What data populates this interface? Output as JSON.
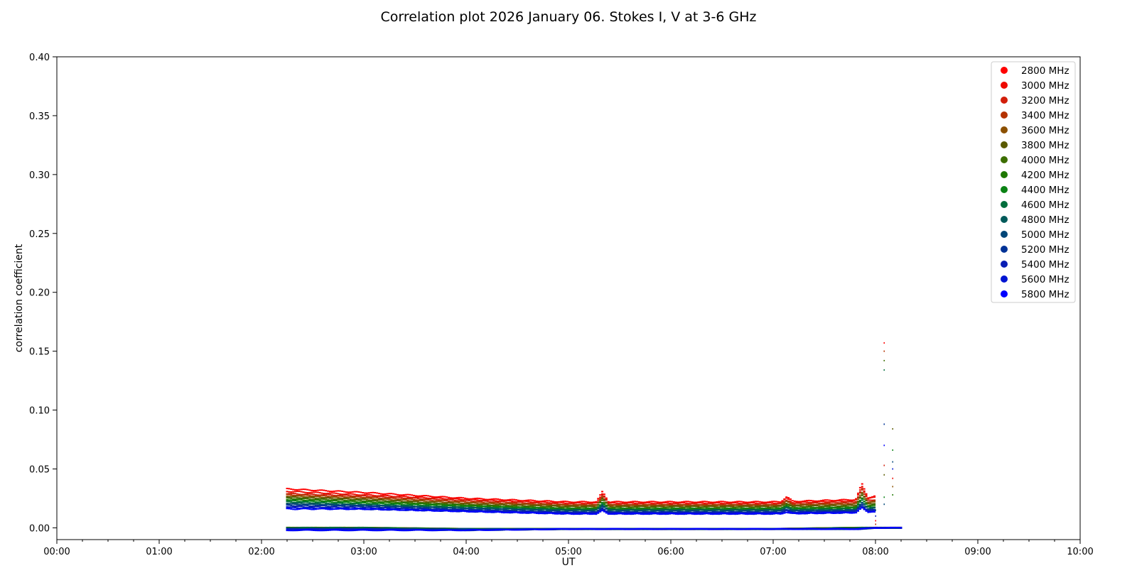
{
  "chart_data": {
    "type": "scatter",
    "title": "Correlation plot 2026 January 06. Stokes I, V at 3-6 GHz",
    "xlabel": "UT",
    "ylabel": "correlation coefficient",
    "xlim": [
      "00:00",
      "10:00"
    ],
    "ylim": [
      -0.01,
      0.4
    ],
    "x_ticks": [
      "00:00",
      "01:00",
      "02:00",
      "03:00",
      "04:00",
      "05:00",
      "06:00",
      "07:00",
      "08:00",
      "09:00",
      "10:00"
    ],
    "y_ticks": [
      "0.00",
      "0.05",
      "0.10",
      "0.15",
      "0.20",
      "0.25",
      "0.30",
      "0.35",
      "0.40"
    ],
    "grid": false,
    "legend_position": "top-right",
    "time_range": [
      "02:15",
      "08:15"
    ],
    "series": [
      {
        "name": "2800 MHz",
        "color": "#ff0000",
        "x": [
          "02:15",
          "03:00",
          "04:00",
          "05:00",
          "06:00",
          "07:00",
          "07:50",
          "08:00"
        ],
        "stokes_i": [
          0.033,
          0.03,
          0.025,
          0.022,
          0.022,
          0.022,
          0.024,
          0.027
        ],
        "stokes_v": [
          0.0,
          0.0,
          -0.001,
          -0.001,
          -0.001,
          -0.001,
          0.0,
          0.0
        ]
      },
      {
        "name": "3000 MHz",
        "color": "#ee0a00",
        "x": [
          "02:15",
          "03:00",
          "04:00",
          "05:00",
          "06:00",
          "07:00",
          "07:50",
          "08:00"
        ],
        "stokes_i": [
          0.031,
          0.028,
          0.024,
          0.021,
          0.021,
          0.021,
          0.023,
          0.026
        ],
        "stokes_v": [
          0.0,
          0.0,
          -0.001,
          -0.001,
          -0.001,
          -0.001,
          0.0,
          0.0
        ]
      },
      {
        "name": "3200 MHz",
        "color": "#d21e0a",
        "x": [
          "02:15",
          "03:00",
          "04:00",
          "05:00",
          "06:00",
          "07:00",
          "07:50",
          "08:00"
        ],
        "stokes_i": [
          0.029,
          0.027,
          0.023,
          0.02,
          0.02,
          0.02,
          0.022,
          0.024
        ],
        "stokes_v": [
          0.0,
          0.0,
          -0.001,
          -0.001,
          -0.001,
          -0.001,
          0.0,
          0.0
        ]
      },
      {
        "name": "3400 MHz",
        "color": "#b43200",
        "x": [
          "02:15",
          "03:00",
          "04:00",
          "05:00",
          "06:00",
          "07:00",
          "07:50",
          "08:00"
        ],
        "stokes_i": [
          0.028,
          0.026,
          0.022,
          0.019,
          0.019,
          0.019,
          0.021,
          0.023
        ],
        "stokes_v": [
          0.0,
          0.0,
          -0.001,
          -0.001,
          -0.001,
          -0.001,
          0.0,
          0.0
        ]
      },
      {
        "name": "3600 MHz",
        "color": "#8c5000",
        "x": [
          "02:15",
          "03:00",
          "04:00",
          "05:00",
          "06:00",
          "07:00",
          "07:50",
          "08:00"
        ],
        "stokes_i": [
          0.027,
          0.025,
          0.021,
          0.019,
          0.019,
          0.019,
          0.02,
          0.022
        ],
        "stokes_v": [
          0.0,
          0.0,
          -0.001,
          -0.001,
          -0.001,
          -0.001,
          0.0,
          0.0
        ]
      },
      {
        "name": "3800 MHz",
        "color": "#5a5a00",
        "x": [
          "02:15",
          "03:00",
          "04:00",
          "05:00",
          "06:00",
          "07:00",
          "07:50",
          "08:00"
        ],
        "stokes_i": [
          0.026,
          0.024,
          0.02,
          0.018,
          0.018,
          0.018,
          0.019,
          0.021
        ],
        "stokes_v": [
          0.0,
          0.0,
          -0.001,
          -0.001,
          -0.001,
          -0.001,
          0.0,
          0.0
        ]
      },
      {
        "name": "4000 MHz",
        "color": "#3c6e00",
        "x": [
          "02:15",
          "03:00",
          "04:00",
          "05:00",
          "06:00",
          "07:00",
          "07:50",
          "08:00"
        ],
        "stokes_i": [
          0.025,
          0.023,
          0.019,
          0.017,
          0.017,
          0.017,
          0.018,
          0.02
        ],
        "stokes_v": [
          0.0,
          0.0,
          -0.001,
          -0.001,
          -0.001,
          -0.001,
          0.0,
          0.0
        ]
      },
      {
        "name": "4200 MHz",
        "color": "#1e7800",
        "x": [
          "02:15",
          "03:00",
          "04:00",
          "05:00",
          "06:00",
          "07:00",
          "07:50",
          "08:00"
        ],
        "stokes_i": [
          0.024,
          0.022,
          0.019,
          0.016,
          0.016,
          0.016,
          0.017,
          0.019
        ],
        "stokes_v": [
          0.0,
          0.0,
          -0.001,
          -0.001,
          -0.001,
          -0.001,
          0.0,
          0.0
        ]
      },
      {
        "name": "4400 MHz",
        "color": "#0a8214",
        "x": [
          "02:15",
          "03:00",
          "04:00",
          "05:00",
          "06:00",
          "07:00",
          "07:50",
          "08:00"
        ],
        "stokes_i": [
          0.023,
          0.021,
          0.018,
          0.016,
          0.016,
          0.016,
          0.017,
          0.018
        ],
        "stokes_v": [
          0.0,
          0.0,
          -0.001,
          -0.001,
          -0.001,
          -0.001,
          0.0,
          0.0
        ]
      },
      {
        "name": "4600 MHz",
        "color": "#006e3c",
        "x": [
          "02:15",
          "03:00",
          "04:00",
          "05:00",
          "06:00",
          "07:00",
          "07:50",
          "08:00"
        ],
        "stokes_i": [
          0.022,
          0.02,
          0.017,
          0.015,
          0.015,
          0.015,
          0.016,
          0.017
        ],
        "stokes_v": [
          0.0,
          0.0,
          -0.001,
          -0.001,
          -0.001,
          -0.001,
          0.0,
          0.0
        ]
      },
      {
        "name": "4800 MHz",
        "color": "#005a5a",
        "x": [
          "02:15",
          "03:00",
          "04:00",
          "05:00",
          "06:00",
          "07:00",
          "07:50",
          "08:00"
        ],
        "stokes_i": [
          0.021,
          0.019,
          0.017,
          0.015,
          0.015,
          0.015,
          0.015,
          0.017
        ],
        "stokes_v": [
          -0.001,
          -0.001,
          -0.001,
          -0.001,
          -0.001,
          -0.001,
          -0.001,
          0.0
        ]
      },
      {
        "name": "5000 MHz",
        "color": "#004678",
        "x": [
          "02:15",
          "03:00",
          "04:00",
          "05:00",
          "06:00",
          "07:00",
          "07:50",
          "08:00"
        ],
        "stokes_i": [
          0.02,
          0.019,
          0.016,
          0.014,
          0.014,
          0.014,
          0.015,
          0.016
        ],
        "stokes_v": [
          -0.001,
          -0.001,
          -0.001,
          -0.001,
          -0.001,
          -0.001,
          -0.001,
          0.0
        ]
      },
      {
        "name": "5200 MHz",
        "color": "#003296",
        "x": [
          "02:15",
          "03:00",
          "04:00",
          "05:00",
          "06:00",
          "07:00",
          "07:50",
          "08:00"
        ],
        "stokes_i": [
          0.019,
          0.018,
          0.015,
          0.013,
          0.013,
          0.013,
          0.014,
          0.015
        ],
        "stokes_v": [
          -0.001,
          -0.001,
          -0.002,
          -0.001,
          -0.001,
          -0.001,
          -0.001,
          0.0
        ]
      },
      {
        "name": "5400 MHz",
        "color": "#0a1eb4",
        "x": [
          "02:15",
          "03:00",
          "04:00",
          "05:00",
          "06:00",
          "07:00",
          "07:50",
          "08:00"
        ],
        "stokes_i": [
          0.018,
          0.017,
          0.015,
          0.013,
          0.013,
          0.013,
          0.014,
          0.015
        ],
        "stokes_v": [
          -0.001,
          -0.001,
          -0.002,
          -0.001,
          -0.001,
          -0.001,
          -0.001,
          0.0
        ]
      },
      {
        "name": "5600 MHz",
        "color": "#0014d2",
        "x": [
          "02:15",
          "03:00",
          "04:00",
          "05:00",
          "06:00",
          "07:00",
          "07:50",
          "08:00"
        ],
        "stokes_i": [
          0.017,
          0.016,
          0.014,
          0.012,
          0.012,
          0.012,
          0.013,
          0.014
        ],
        "stokes_v": [
          -0.002,
          -0.002,
          -0.002,
          -0.001,
          -0.001,
          -0.001,
          -0.001,
          0.0
        ]
      },
      {
        "name": "5800 MHz",
        "color": "#0000ff",
        "x": [
          "02:15",
          "03:00",
          "04:00",
          "05:00",
          "06:00",
          "07:00",
          "07:50",
          "08:00"
        ],
        "stokes_i": [
          0.016,
          0.016,
          0.014,
          0.012,
          0.012,
          0.012,
          0.013,
          0.014
        ],
        "stokes_v": [
          -0.002,
          -0.002,
          -0.002,
          -0.001,
          -0.001,
          -0.001,
          -0.001,
          0.0
        ]
      }
    ],
    "spikes": [
      {
        "x": "05:20",
        "peak": 0.031
      },
      {
        "x": "07:08",
        "peak": 0.026
      },
      {
        "x": "07:52",
        "peak": 0.035
      }
    ],
    "outliers": [
      {
        "x": "08:05",
        "values": [
          0.157,
          0.15,
          0.142,
          0.134,
          0.088,
          0.07,
          0.053,
          0.045,
          0.026,
          0.02
        ]
      },
      {
        "x": "08:10",
        "values": [
          0.084,
          0.066,
          0.056,
          0.05,
          0.042,
          0.035,
          0.028
        ]
      },
      {
        "x": "08:00",
        "values": [
          0.015,
          0.01,
          0.006,
          0.003
        ]
      }
    ]
  }
}
